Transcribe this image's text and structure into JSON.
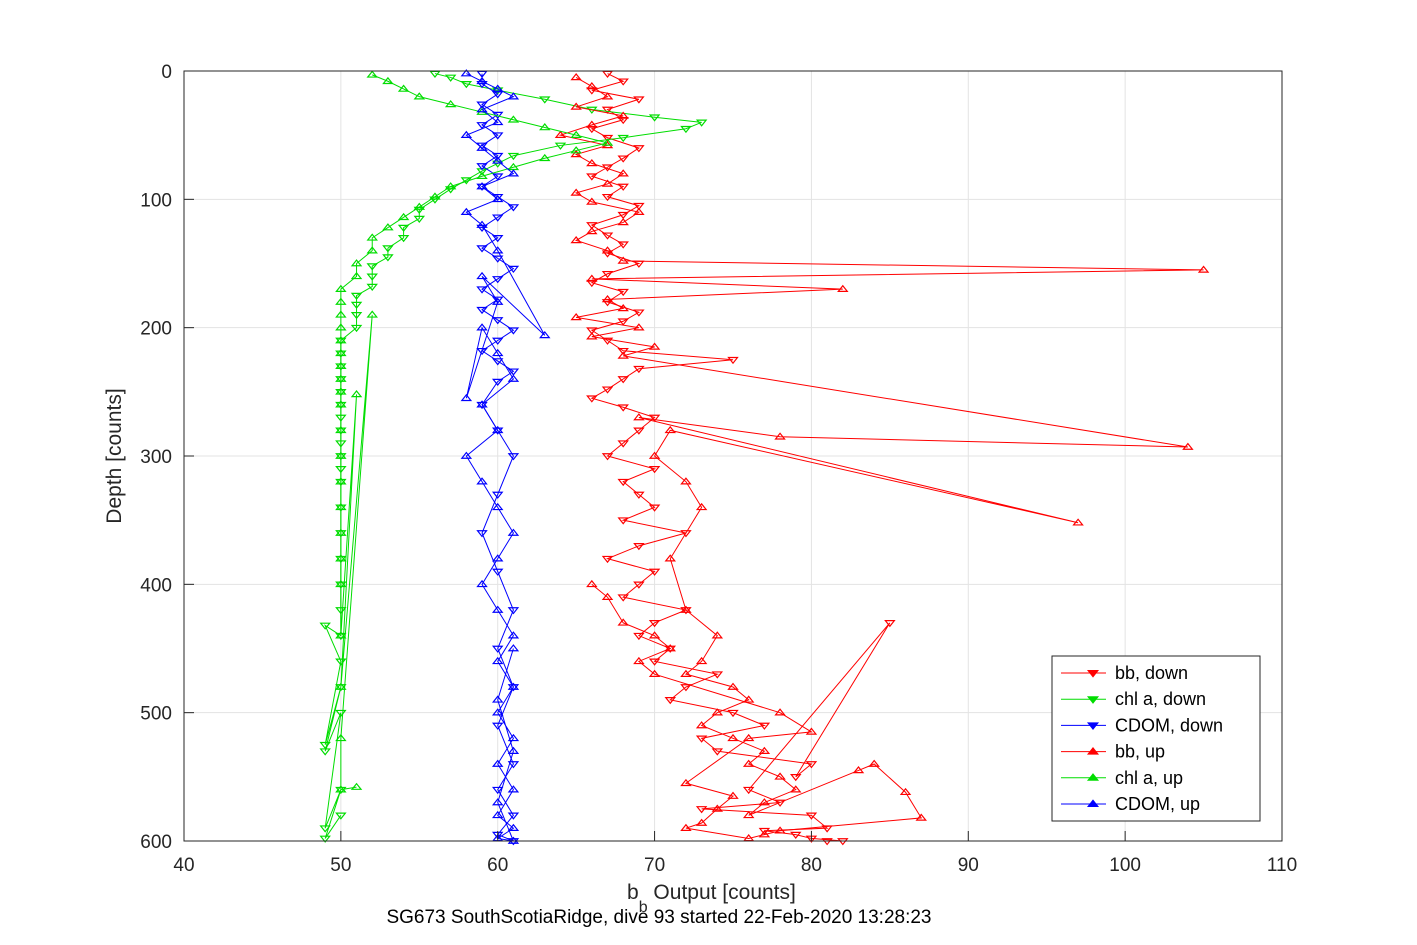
{
  "chart_data": {
    "type": "scatter",
    "title": "",
    "xlabel_main": "b",
    "xlabel_sub": "b",
    "xlabel_rest": " Output [counts]",
    "ylabel": "Depth [counts]",
    "caption": "SG673 SouthScotiaRidge, dive 93 started 22-Feb-2020 13:28:23",
    "xlim": [
      40,
      110
    ],
    "ylim": [
      0,
      600
    ],
    "y_reversed": true,
    "grid": true,
    "legend_position": "bottom-right",
    "xticks": [
      "40",
      "50",
      "60",
      "70",
      "80",
      "90",
      "100",
      "110"
    ],
    "yticks": [
      "0",
      "100",
      "200",
      "300",
      "400",
      "500",
      "600"
    ],
    "series": [
      {
        "name": "bb, down",
        "color": "#ff0000",
        "marker": "triangle-down",
        "x": [
          67,
          68,
          66,
          69,
          67,
          68,
          66,
          67,
          69,
          68,
          67,
          66,
          68,
          67,
          69,
          68,
          66,
          67,
          68,
          67,
          69,
          67,
          66,
          68,
          67,
          69,
          68,
          66,
          67,
          68,
          75,
          69,
          68,
          67,
          66,
          68,
          70,
          69,
          68,
          67,
          70,
          68,
          69,
          70,
          68,
          72,
          69,
          67,
          70,
          69,
          68,
          72,
          70,
          69,
          71,
          70,
          74,
          72,
          71,
          75,
          77,
          73,
          74,
          80,
          79,
          85,
          76,
          78,
          73,
          80,
          81,
          77,
          79,
          80,
          82,
          81
        ],
        "y": [
          2,
          8,
          15,
          22,
          30,
          38,
          45,
          52,
          60,
          68,
          75,
          82,
          90,
          98,
          105,
          112,
          120,
          128,
          135,
          142,
          150,
          158,
          165,
          172,
          180,
          188,
          195,
          202,
          210,
          218,
          225,
          232,
          240,
          248,
          255,
          262,
          270,
          280,
          290,
          300,
          310,
          320,
          330,
          340,
          350,
          360,
          370,
          380,
          390,
          400,
          410,
          420,
          430,
          440,
          450,
          460,
          470,
          480,
          490,
          500,
          510,
          520,
          530,
          540,
          550,
          430,
          560,
          570,
          575,
          580,
          590,
          592,
          595,
          598,
          600,
          600
        ]
      },
      {
        "name": "chl a, down",
        "color": "#00dd00",
        "marker": "triangle-down",
        "x": [
          56,
          57,
          58,
          60,
          63,
          66,
          70,
          73,
          72,
          68,
          64,
          61,
          60,
          59,
          58,
          57,
          56,
          55,
          55,
          54,
          54,
          53,
          53,
          52,
          52,
          52,
          51,
          51,
          51,
          51,
          50,
          50,
          50,
          50,
          50,
          50,
          50,
          50,
          50,
          50,
          50,
          50,
          50,
          50,
          50,
          50,
          50,
          50,
          49,
          50,
          49,
          50,
          49,
          50,
          49,
          50,
          49,
          50
        ],
        "y": [
          2,
          5,
          10,
          15,
          22,
          30,
          36,
          40,
          45,
          52,
          58,
          66,
          72,
          78,
          85,
          92,
          100,
          108,
          115,
          122,
          130,
          138,
          145,
          152,
          160,
          168,
          175,
          182,
          190,
          200,
          210,
          220,
          230,
          240,
          250,
          260,
          270,
          280,
          290,
          300,
          310,
          320,
          340,
          360,
          380,
          400,
          420,
          440,
          432,
          460,
          525,
          480,
          530,
          500,
          590,
          560,
          598,
          580
        ]
      },
      {
        "name": "CDOM, down",
        "color": "#0000ff",
        "marker": "triangle-down",
        "x": [
          59,
          59,
          60,
          59,
          60,
          59,
          60,
          59,
          60,
          59,
          60,
          59,
          60,
          61,
          60,
          59,
          60,
          59,
          60,
          61,
          60,
          59,
          60,
          59,
          60,
          61,
          60,
          59,
          60,
          61,
          60,
          59,
          60,
          61,
          60,
          59,
          60,
          61,
          60,
          61,
          60,
          61,
          60,
          61,
          60,
          61
        ],
        "y": [
          2,
          10,
          18,
          26,
          34,
          42,
          50,
          58,
          66,
          74,
          82,
          90,
          98,
          106,
          114,
          122,
          130,
          138,
          146,
          154,
          162,
          170,
          178,
          186,
          194,
          202,
          210,
          218,
          226,
          234,
          242,
          260,
          280,
          300,
          330,
          360,
          390,
          420,
          450,
          480,
          510,
          540,
          560,
          580,
          595,
          600
        ]
      },
      {
        "name": "bb, up",
        "color": "#ff0000",
        "marker": "triangle-up",
        "x": [
          65,
          66,
          67,
          65,
          68,
          66,
          64,
          67,
          65,
          66,
          68,
          67,
          65,
          66,
          69,
          68,
          66,
          65,
          67,
          68,
          105,
          66,
          82,
          67,
          68,
          65,
          69,
          66,
          70,
          68,
          104,
          78,
          69,
          97,
          71,
          70,
          72,
          73,
          71,
          72,
          74,
          73,
          72,
          75,
          76,
          74,
          73,
          75,
          77,
          76,
          78,
          79,
          77,
          76,
          83,
          84,
          86,
          87,
          78,
          77,
          76,
          72,
          73,
          74,
          75,
          72,
          76,
          80,
          78,
          70,
          69,
          71,
          70,
          68,
          67,
          66
        ],
        "y": [
          5,
          12,
          20,
          28,
          35,
          42,
          50,
          58,
          65,
          72,
          80,
          88,
          95,
          102,
          110,
          118,
          125,
          132,
          140,
          148,
          155,
          162,
          170,
          178,
          185,
          192,
          200,
          207,
          215,
          222,
          293,
          285,
          270,
          352,
          280,
          300,
          320,
          340,
          380,
          420,
          440,
          460,
          470,
          480,
          490,
          500,
          510,
          520,
          530,
          540,
          550,
          560,
          570,
          580,
          545,
          540,
          562,
          582,
          592,
          595,
          598,
          590,
          586,
          575,
          565,
          555,
          520,
          515,
          500,
          470,
          460,
          450,
          440,
          430,
          410,
          400
        ]
      },
      {
        "name": "chl a, up",
        "color": "#00dd00",
        "marker": "triangle-up",
        "x": [
          52,
          53,
          54,
          55,
          57,
          59,
          61,
          63,
          65,
          67,
          65,
          63,
          61,
          59,
          57,
          56,
          55,
          54,
          53,
          52,
          52,
          51,
          51,
          50,
          50,
          50,
          50,
          50,
          50,
          50,
          50,
          50,
          50,
          50,
          50,
          50,
          50,
          50,
          50,
          50,
          50,
          51,
          50,
          52,
          50,
          50,
          51
        ],
        "y": [
          3,
          8,
          14,
          20,
          26,
          32,
          38,
          44,
          50,
          56,
          62,
          68,
          75,
          82,
          90,
          98,
          106,
          114,
          122,
          130,
          140,
          150,
          160,
          170,
          180,
          190,
          200,
          210,
          220,
          230,
          240,
          250,
          260,
          280,
          300,
          320,
          340,
          360,
          380,
          400,
          440,
          252,
          480,
          190,
          520,
          560,
          558
        ]
      },
      {
        "name": "CDOM, up",
        "color": "#0000ff",
        "marker": "triangle-up",
        "x": [
          58,
          59,
          60,
          61,
          59,
          60,
          58,
          59,
          60,
          61,
          59,
          60,
          58,
          59,
          60,
          63,
          59,
          60,
          58,
          59,
          60,
          61,
          59,
          60,
          58,
          59,
          60,
          61,
          60,
          59,
          60,
          61,
          60,
          61,
          60,
          61,
          60,
          61,
          60,
          61,
          60,
          61,
          60,
          61,
          60,
          61
        ],
        "y": [
          2,
          8,
          14,
          20,
          30,
          40,
          50,
          60,
          70,
          80,
          90,
          100,
          110,
          120,
          140,
          206,
          160,
          180,
          255,
          200,
          220,
          240,
          260,
          280,
          300,
          320,
          340,
          360,
          380,
          400,
          420,
          440,
          460,
          480,
          500,
          520,
          540,
          560,
          580,
          590,
          598,
          600,
          570,
          530,
          490,
          450
        ]
      }
    ]
  }
}
